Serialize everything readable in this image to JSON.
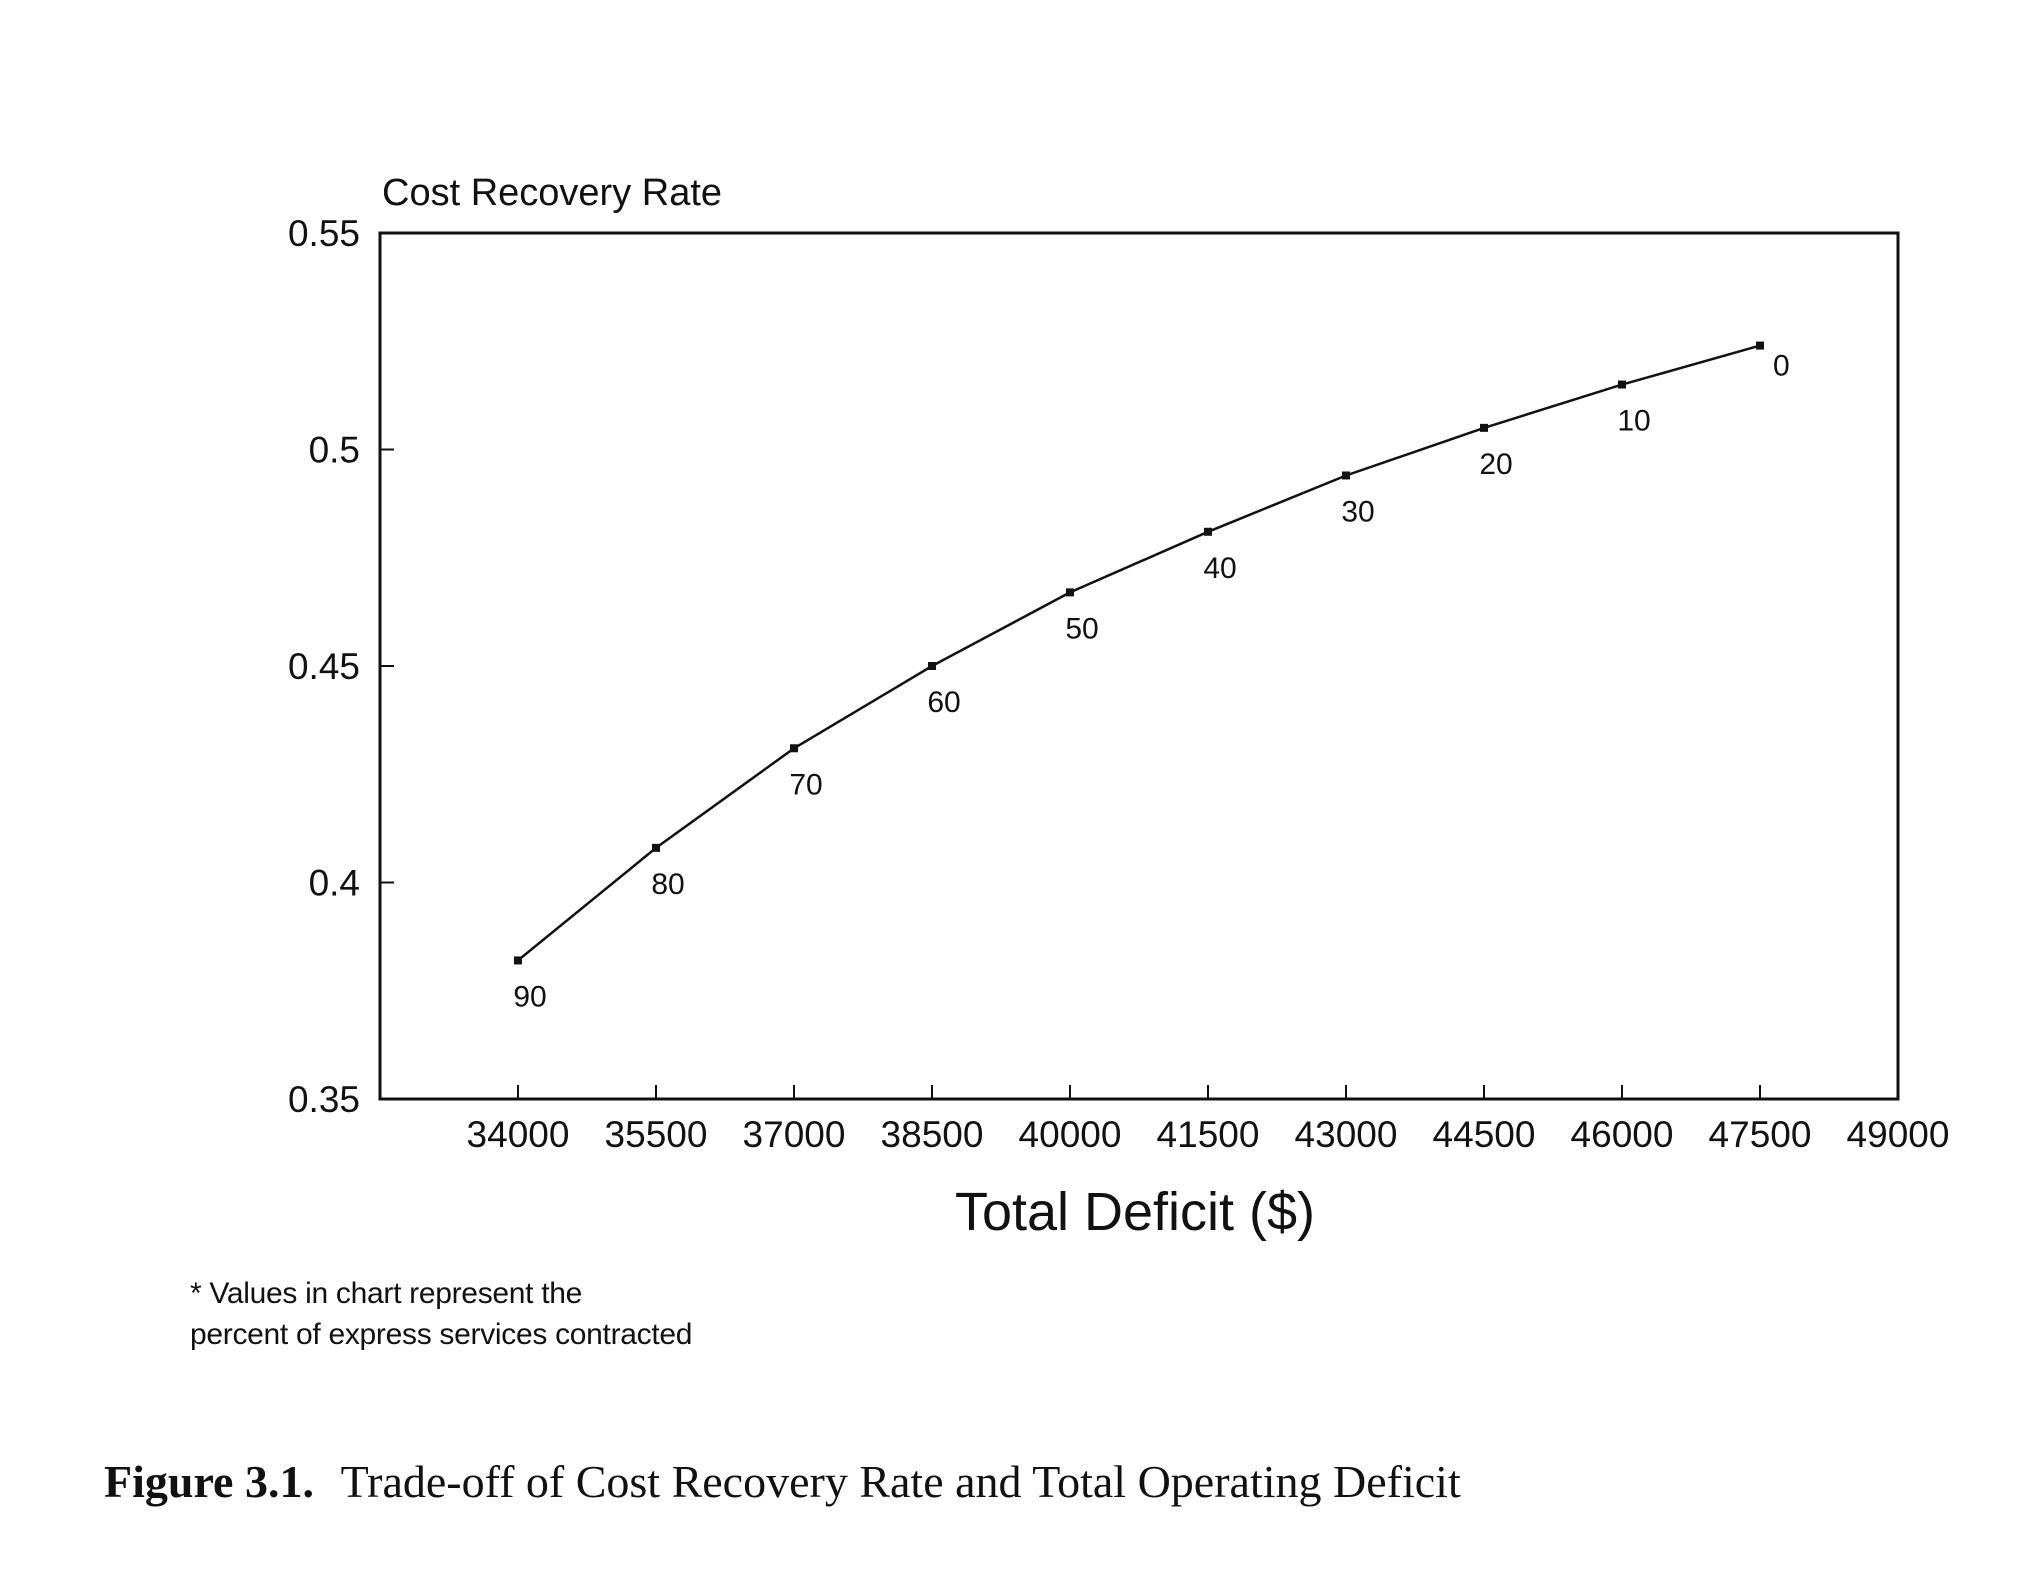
{
  "chart_data": {
    "type": "line",
    "ylabel": "Cost Recovery Rate",
    "xlabel": "Total Deficit ($)",
    "xlim": [
      32500,
      49000
    ],
    "ylim": [
      0.35,
      0.55
    ],
    "x_ticks": [
      "34000",
      "35500",
      "37000",
      "38500",
      "40000",
      "41500",
      "43000",
      "44500",
      "46000",
      "47500",
      "49000"
    ],
    "y_ticks": [
      "0.35",
      "0.4",
      "0.45",
      "0.5",
      "0.55"
    ],
    "grid": false,
    "series": [
      {
        "points": [
          {
            "x": 34000,
            "y": 0.382,
            "label": "90"
          },
          {
            "x": 35500,
            "y": 0.408,
            "label": "80"
          },
          {
            "x": 37000,
            "y": 0.431,
            "label": "70"
          },
          {
            "x": 38500,
            "y": 0.45,
            "label": "60"
          },
          {
            "x": 40000,
            "y": 0.467,
            "label": "50"
          },
          {
            "x": 41500,
            "y": 0.481,
            "label": "40"
          },
          {
            "x": 43000,
            "y": 0.494,
            "label": "30"
          },
          {
            "x": 44500,
            "y": 0.505,
            "label": "20"
          },
          {
            "x": 46000,
            "y": 0.515,
            "label": "10"
          },
          {
            "x": 47500,
            "y": 0.524,
            "label": "0"
          }
        ]
      }
    ]
  },
  "footnote": {
    "line1": "* Values in chart represent the",
    "line2": "percent of express services contracted"
  },
  "caption": {
    "number": "Figure 3.1.",
    "text": "Trade-off of Cost Recovery Rate and Total Operating Deficit"
  }
}
